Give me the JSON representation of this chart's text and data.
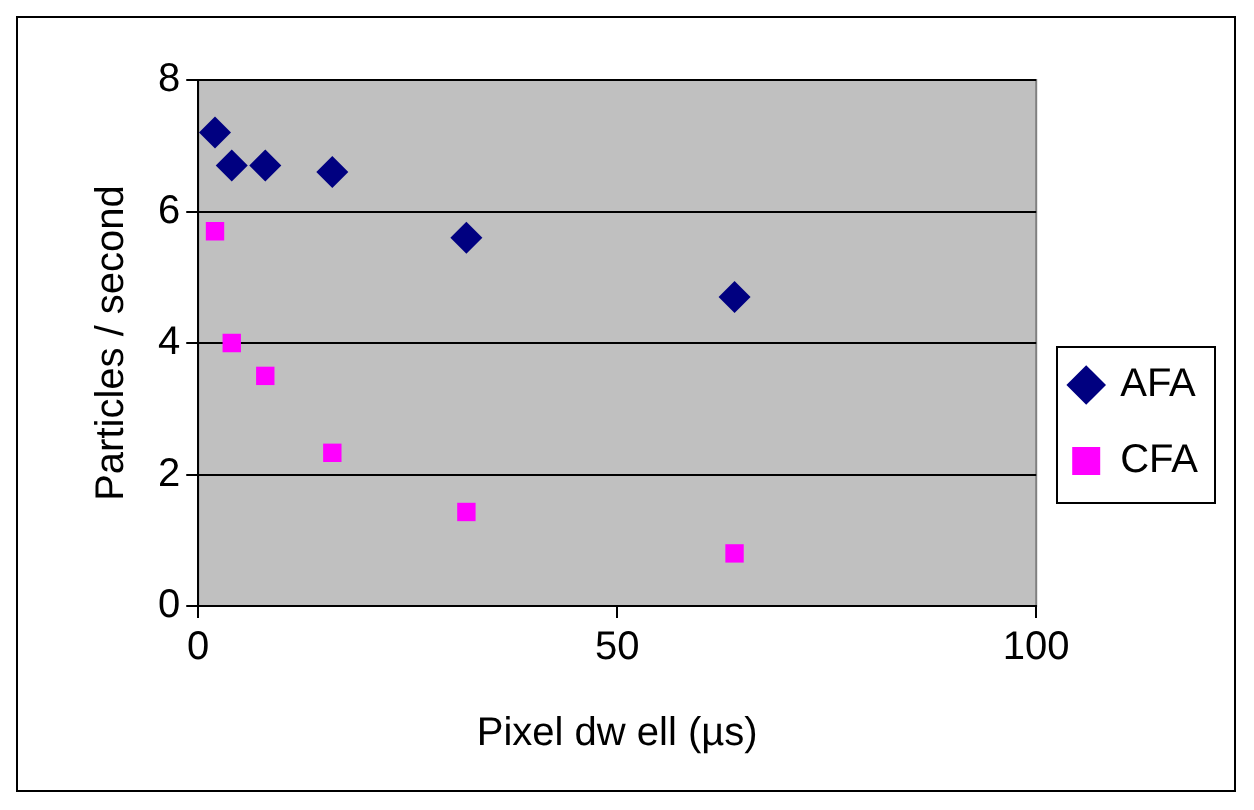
{
  "chart_data": {
    "type": "scatter",
    "xlabel": "Pixel dw ell (µs)",
    "ylabel": "Particles / second",
    "xlim": [
      0,
      100
    ],
    "xticks": [
      0,
      50,
      100
    ],
    "ylim": [
      0,
      8
    ],
    "yticks": [
      0,
      2,
      4,
      6,
      8
    ],
    "grid": "y",
    "legend": "right",
    "series": [
      {
        "name": "AFA",
        "color": "#000080",
        "marker": "diamond",
        "x": [
          2,
          4,
          8,
          16,
          32,
          64
        ],
        "values": [
          7.2,
          6.7,
          6.7,
          6.6,
          5.6,
          4.7
        ]
      },
      {
        "name": "CFA",
        "color": "#ff00ff",
        "marker": "square",
        "x": [
          2,
          4,
          8,
          16,
          32,
          64
        ],
        "values": [
          5.7,
          4.0,
          3.5,
          2.33,
          1.43,
          0.8
        ]
      }
    ]
  }
}
